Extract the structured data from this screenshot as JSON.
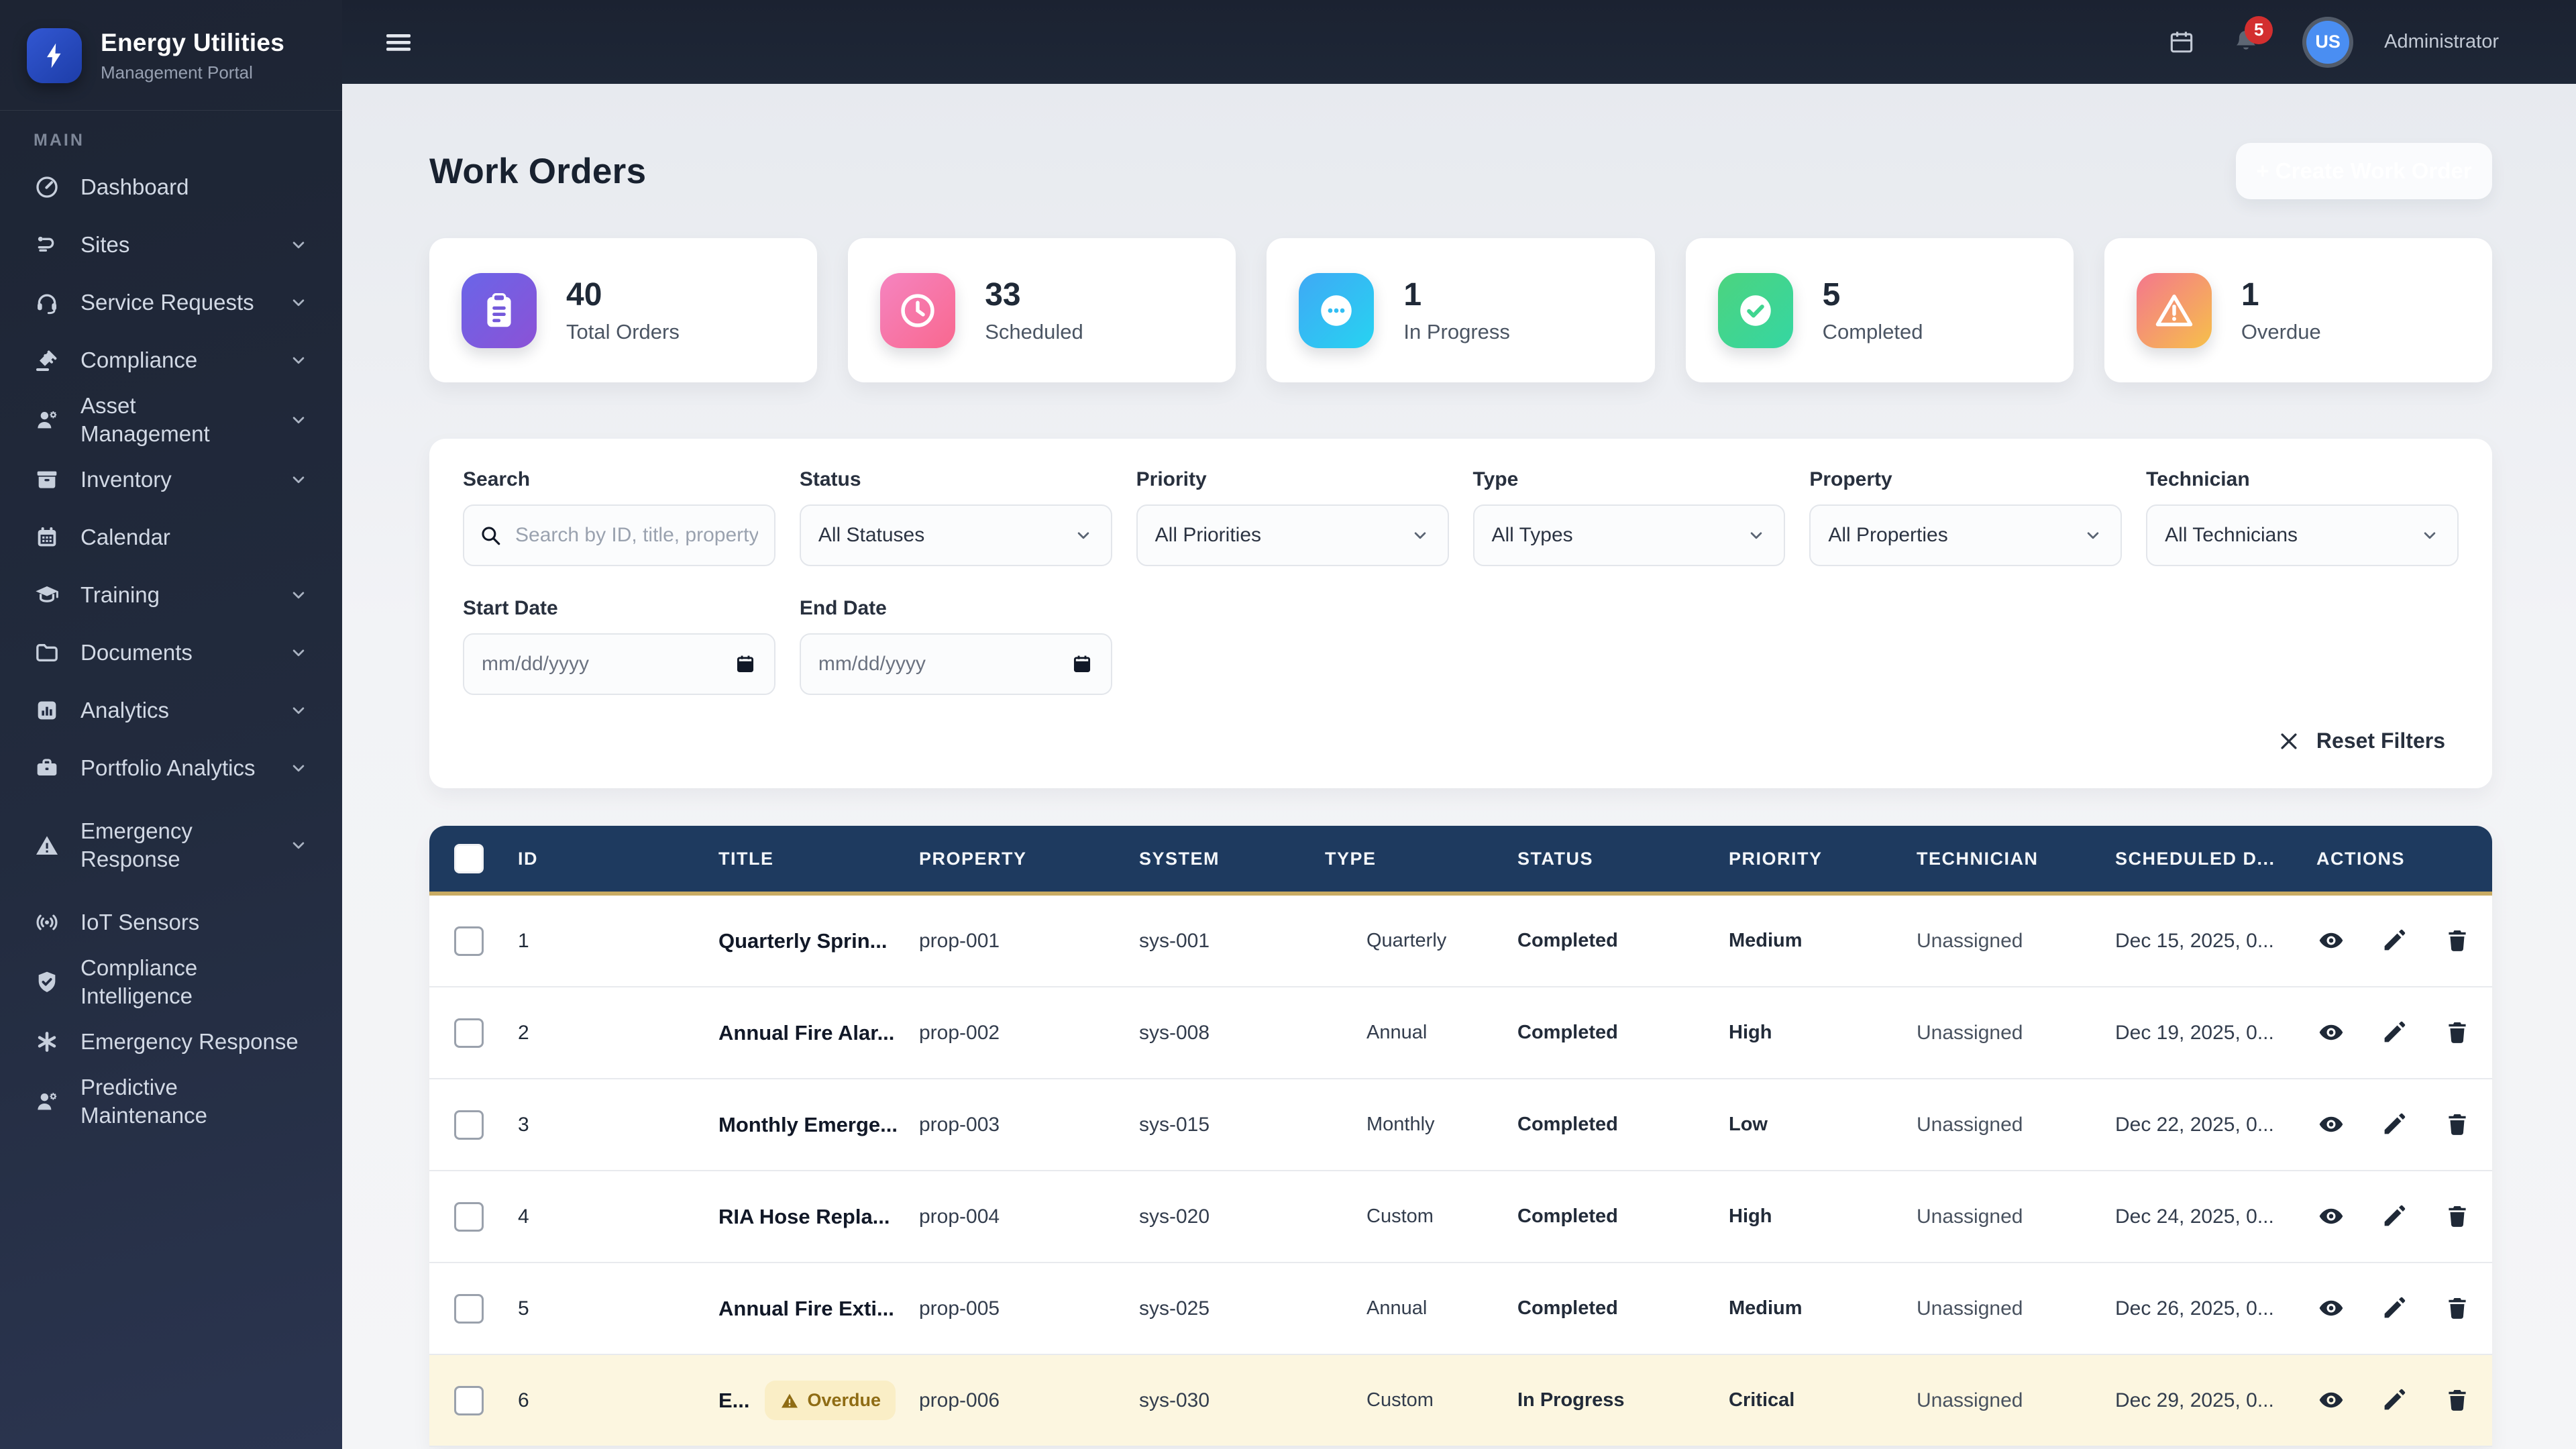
{
  "app": {
    "name": "Energy Utilities",
    "subtitle": "Management Portal"
  },
  "topbar": {
    "notification_count": "5",
    "user_initials": "US",
    "user_role": "Administrator",
    "icons": [
      "hamburger-icon",
      "calendar-icon",
      "bell-icon"
    ]
  },
  "sidebar": {
    "section_label": "MAIN",
    "items": [
      {
        "label": "Dashboard",
        "icon": "gauge",
        "chevron": false
      },
      {
        "label": "Sites",
        "icon": "route",
        "chevron": true
      },
      {
        "label": "Service Requests",
        "icon": "headset",
        "chevron": true
      },
      {
        "label": "Compliance",
        "icon": "gavel",
        "chevron": true
      },
      {
        "label": "Asset Management",
        "icon": "worker",
        "chevron": true
      },
      {
        "label": "Inventory",
        "icon": "box",
        "chevron": true
      },
      {
        "label": "Calendar",
        "icon": "calendar",
        "chevron": false
      },
      {
        "label": "Training",
        "icon": "gradcap",
        "chevron": true
      },
      {
        "label": "Documents",
        "icon": "folder",
        "chevron": true
      },
      {
        "label": "Analytics",
        "icon": "chart",
        "chevron": true
      },
      {
        "label": "Portfolio Analytics",
        "icon": "briefcase",
        "chevron": true
      },
      {
        "label": "Emergency Response",
        "icon": "warntri",
        "chevron": true,
        "two_line": true
      },
      {
        "label": "IoT Sensors",
        "icon": "signal",
        "chevron": false
      },
      {
        "label": "Compliance Intelligence",
        "icon": "shield",
        "chevron": false
      },
      {
        "label": "Emergency Response",
        "icon": "asterisk",
        "chevron": false
      },
      {
        "label": "Predictive Maintenance",
        "icon": "worker",
        "chevron": false
      }
    ]
  },
  "page": {
    "title": "Work Orders",
    "create_button_label": "+  Create Work Order"
  },
  "stats": [
    {
      "value": "40",
      "label": "Total Orders",
      "icon": "clipboard",
      "color_from": "#6a65e8",
      "color_to": "#8b52d6",
      "accent": "#7459db"
    },
    {
      "value": "33",
      "label": "Scheduled",
      "icon": "clock",
      "color_from": "#f584c0",
      "color_to": "#f9688f",
      "accent": "#f775a8"
    },
    {
      "value": "1",
      "label": "In Progress",
      "icon": "ellipsis",
      "color_from": "#3fa9f5",
      "color_to": "#27d3f1",
      "accent": "#32bef3"
    },
    {
      "value": "5",
      "label": "Completed",
      "icon": "check",
      "color_from": "#4cd47f",
      "color_to": "#35d6a2",
      "accent": "#40d590"
    },
    {
      "value": "1",
      "label": "Overdue",
      "icon": "warnstat",
      "color_from": "#f4778d",
      "color_to": "#f6c04a",
      "accent": "#f59a6b"
    }
  ],
  "filters": {
    "search": {
      "label": "Search",
      "placeholder": "Search by ID, title, property.."
    },
    "selects": [
      {
        "label": "Status",
        "value": "All Statuses"
      },
      {
        "label": "Priority",
        "value": "All Priorities"
      },
      {
        "label": "Type",
        "value": "All Types"
      },
      {
        "label": "Property",
        "value": "All Properties"
      },
      {
        "label": "Technician",
        "value": "All Technicians"
      }
    ],
    "dates": [
      {
        "label": "Start Date",
        "placeholder": "mm/dd/yyyy"
      },
      {
        "label": "End Date",
        "placeholder": "mm/dd/yyyy"
      }
    ],
    "reset_label": "Reset Filters"
  },
  "table": {
    "columns": [
      "ID",
      "TITLE",
      "PROPERTY",
      "SYSTEM",
      "TYPE",
      "STATUS",
      "PRIORITY",
      "TECHNICIAN",
      "SCHEDULED D...",
      "ACTIONS"
    ],
    "overdue_badge_label": "Overdue",
    "action_icons": [
      "view-eye-icon",
      "edit-pencil-icon",
      "delete-trash-icon"
    ],
    "rows": [
      {
        "id": "1",
        "title": "Quarterly Sprin...",
        "overdue": false,
        "property": "prop-001",
        "system": "sys-001",
        "type": "Quarterly",
        "status": "Completed",
        "priority": "Medium",
        "technician": "Unassigned",
        "scheduled": "Dec 15, 2025, 0..."
      },
      {
        "id": "2",
        "title": "Annual Fire Alar...",
        "overdue": false,
        "property": "prop-002",
        "system": "sys-008",
        "type": "Annual",
        "status": "Completed",
        "priority": "High",
        "technician": "Unassigned",
        "scheduled": "Dec 19, 2025, 0..."
      },
      {
        "id": "3",
        "title": "Monthly Emerge...",
        "overdue": false,
        "property": "prop-003",
        "system": "sys-015",
        "type": "Monthly",
        "status": "Completed",
        "priority": "Low",
        "technician": "Unassigned",
        "scheduled": "Dec 22, 2025, 0..."
      },
      {
        "id": "4",
        "title": "RIA Hose Repla...",
        "overdue": false,
        "property": "prop-004",
        "system": "sys-020",
        "type": "Custom",
        "status": "Completed",
        "priority": "High",
        "technician": "Unassigned",
        "scheduled": "Dec 24, 2025, 0..."
      },
      {
        "id": "5",
        "title": "Annual Fire Exti...",
        "overdue": false,
        "property": "prop-005",
        "system": "sys-025",
        "type": "Annual",
        "status": "Completed",
        "priority": "Medium",
        "technician": "Unassigned",
        "scheduled": "Dec 26, 2025, 0..."
      },
      {
        "id": "6",
        "title": "E...",
        "overdue": true,
        "property": "prop-006",
        "system": "sys-030",
        "type": "Custom",
        "status": "In Progress",
        "priority": "Critical",
        "technician": "Unassigned",
        "scheduled": "Dec 29, 2025, 0..."
      }
    ]
  },
  "colors": {
    "sidebar_bg": "#202939",
    "topbar_bg": "#1d2534",
    "table_header_bg": "#1e3a5f",
    "table_header_accent": "#c9ab63",
    "overdue_row_bg": "#fcf6e0",
    "badge_red": "#d32f2f",
    "avatar_blue": "#4a8ef2",
    "logo_blue": "#2450c4"
  }
}
